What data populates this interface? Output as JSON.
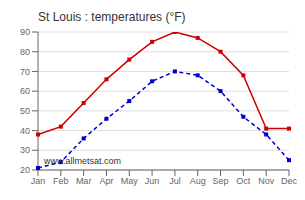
{
  "chart_data": {
    "type": "line",
    "title": "St Louis : temperatures (°F)",
    "categories": [
      "Jan",
      "Feb",
      "Mar",
      "Apr",
      "May",
      "Jun",
      "Jul",
      "Aug",
      "Sep",
      "Oct",
      "Nov",
      "Dec"
    ],
    "series": [
      {
        "color": "#cc0000",
        "values": [
          38,
          42,
          54,
          66,
          76,
          85,
          90,
          87,
          80,
          68,
          41,
          41
        ],
        "marker": "square",
        "line_style": "solid"
      },
      {
        "color": "#0000cc",
        "values": [
          21,
          24,
          36,
          46,
          55,
          65,
          70,
          68,
          60,
          47,
          38,
          25
        ],
        "marker": "square",
        "line_style": "dashed"
      }
    ],
    "ylim": [
      20,
      90
    ],
    "yticks": [
      20,
      30,
      40,
      50,
      60,
      70,
      80,
      90
    ],
    "grid": true,
    "annotations": [
      "www.allmetsat.com"
    ]
  }
}
